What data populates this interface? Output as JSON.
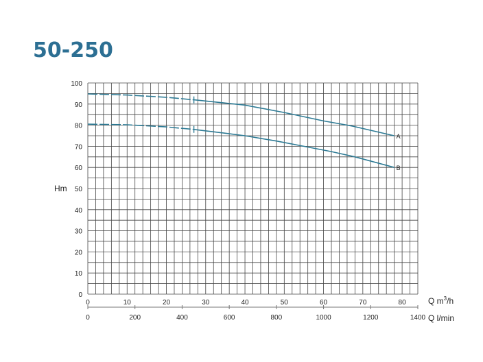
{
  "chart_data": {
    "type": "line",
    "title": "50-250",
    "ylabel": "Hm",
    "xlabel": "Q m³/h",
    "xlabel_parts": {
      "base": "Q m",
      "sup": "3",
      "tail": "/h"
    },
    "x2label": "Q l/min",
    "xlim": [
      0,
      84
    ],
    "ylim": [
      0,
      100
    ],
    "x_ticks": [
      0,
      10,
      20,
      30,
      40,
      50,
      60,
      70,
      80
    ],
    "x2_ticks": [
      0,
      200,
      400,
      600,
      800,
      1000,
      1200,
      1400
    ],
    "y_ticks": [
      0,
      10,
      20,
      30,
      40,
      50,
      60,
      70,
      80,
      90,
      100
    ],
    "grid": true,
    "grid_step_x": 2,
    "grid_step_y": 5,
    "line_color": "#2e7b95",
    "title_color": "#2c6f93",
    "series": [
      {
        "name": "A",
        "dashed_until": 27,
        "x": [
          0,
          10,
          20,
          27,
          35,
          40,
          50,
          60,
          67.5,
          78
        ],
        "y": [
          94.8,
          94.3,
          93.2,
          92,
          90.5,
          89.5,
          86,
          82,
          79.5,
          75
        ]
      },
      {
        "name": "B",
        "dashed_until": 27,
        "x": [
          0,
          10,
          20,
          27,
          35,
          40,
          48,
          55,
          62,
          68,
          78
        ],
        "y": [
          80.5,
          80.2,
          79.2,
          78,
          76.2,
          75,
          72.5,
          70,
          67.5,
          65,
          60
        ]
      }
    ]
  }
}
